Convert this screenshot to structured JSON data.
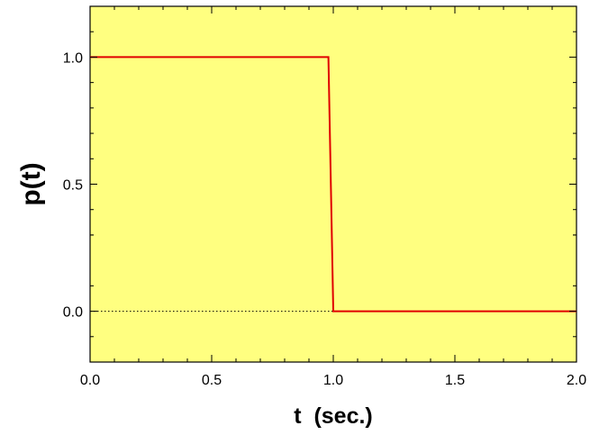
{
  "chart_data": {
    "type": "line",
    "xlabel": "t  (sec.)",
    "ylabel": "p(t)",
    "xlim": [
      0.0,
      2.0
    ],
    "ylim": [
      -0.2,
      1.2
    ],
    "xticks": [
      0.0,
      0.5,
      1.0,
      1.5,
      2.0
    ],
    "xtick_labels": [
      "0.0",
      "0.5",
      "1.0",
      "1.5",
      "2.0"
    ],
    "yticks": [
      0.0,
      0.5,
      1.0
    ],
    "ytick_labels": [
      "0.0",
      "0.5",
      "1.0"
    ],
    "grid": false,
    "background": "#ffff80",
    "series": [
      {
        "color": "#e00000",
        "x": [
          0.0,
          0.98,
          1.0,
          2.0
        ],
        "y": [
          1.0,
          1.0,
          0.0,
          0.0
        ]
      }
    ],
    "reference_lines": [
      {
        "y": 0.0,
        "style": "dotted",
        "color": "#000000"
      }
    ]
  }
}
